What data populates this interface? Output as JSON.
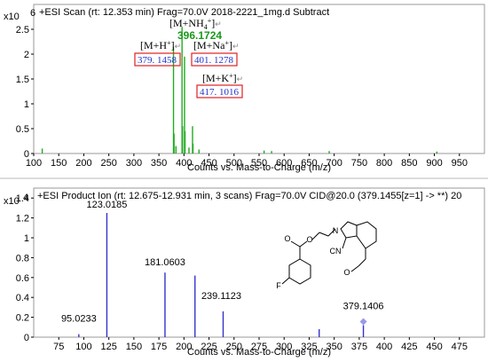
{
  "chart_data": [
    {
      "type": "bar",
      "title": "+ESI Scan (rt: 12.353 min) Frag=70.0V 2018-2221_1mg.d  Subtract",
      "y_multiplier": "x10",
      "y_exponent": "6",
      "xlabel": "Counts vs. Mass-to-Charge (m/z)",
      "xlim": [
        100,
        1000
      ],
      "ylim": [
        0,
        3.0
      ],
      "x_ticks": [
        "100",
        "150",
        "200",
        "250",
        "300",
        "350",
        "400",
        "450",
        "500",
        "550",
        "600",
        "650",
        "700",
        "750",
        "800",
        "850",
        "900",
        "950"
      ],
      "y_ticks": [
        "0",
        "0.5",
        "1",
        "1.5",
        "2",
        "2.5"
      ],
      "bar_color": "#22aa22",
      "peaks": [
        {
          "x": 117,
          "y": 0.1
        },
        {
          "x": 379.1,
          "y": 2.15
        },
        {
          "x": 380.2,
          "y": 0.4
        },
        {
          "x": 384,
          "y": 0.15
        },
        {
          "x": 396.17,
          "y": 2.55
        },
        {
          "x": 397.2,
          "y": 0.55
        },
        {
          "x": 401.13,
          "y": 1.95
        },
        {
          "x": 402.1,
          "y": 0.45
        },
        {
          "x": 410,
          "y": 0.12
        },
        {
          "x": 417.1,
          "y": 0.55
        },
        {
          "x": 418,
          "y": 0.2
        },
        {
          "x": 430,
          "y": 0.08
        },
        {
          "x": 560,
          "y": 0.06
        },
        {
          "x": 575,
          "y": 0.05
        },
        {
          "x": 690,
          "y": 0.05
        },
        {
          "x": 905,
          "y": 0.04
        }
      ],
      "annotations": [
        {
          "label_parts": [
            "[M+NH",
            "4",
            "+",
            "]"
          ],
          "mass": "396.1724",
          "boxed": false,
          "mass_color": "#1a9a1a"
        },
        {
          "label_parts": [
            "[M+H",
            "",
            "+",
            "]"
          ],
          "mass": "379. 1458",
          "boxed": true,
          "mass_color": "#2233cc"
        },
        {
          "label_parts": [
            "[M+Na",
            "",
            "+",
            "]"
          ],
          "mass": "401. 1278",
          "boxed": true,
          "mass_color": "#2233cc"
        },
        {
          "label_parts": [
            "[M+K",
            "",
            "+",
            "]"
          ],
          "mass": "417. 1016",
          "boxed": true,
          "mass_color": "#2233cc"
        }
      ],
      "return_mark": "↵"
    },
    {
      "type": "bar",
      "title": "+ESI Product Ion (rt: 12.675-12.931 min, 3 scans) Frag=70.0V CID@20.0 (379.1455[z=1] -> **) 20",
      "y_multiplier": "x10",
      "y_exponent": "4",
      "xlabel": "Counts vs. Mass-to-Charge (m/z)",
      "xlim": [
        50,
        500
      ],
      "ylim": [
        0,
        1.5
      ],
      "x_ticks": [
        "75",
        "100",
        "125",
        "150",
        "175",
        "200",
        "225",
        "250",
        "275",
        "300",
        "325",
        "350",
        "375",
        "400",
        "425",
        "450",
        "475"
      ],
      "y_ticks": [
        "0",
        "0.2",
        "0.4",
        "0.6",
        "0.8",
        "1",
        "1.2",
        "1.4"
      ],
      "bar_color": "#3333cc",
      "peaks": [
        {
          "x": 95.02,
          "y": 0.03
        },
        {
          "x": 123.02,
          "y": 1.25
        },
        {
          "x": 181.06,
          "y": 0.65
        },
        {
          "x": 211,
          "y": 0.62
        },
        {
          "x": 239.11,
          "y": 0.26
        },
        {
          "x": 335,
          "y": 0.08
        },
        {
          "x": 379.14,
          "y": 0.12
        }
      ],
      "labels": [
        "95.0233",
        "123.0185",
        "181.0603",
        "239.1123",
        "379.1406"
      ],
      "label_color": "#2233cc",
      "precursor_marker_color": "#9999ee"
    }
  ],
  "structure": {
    "labels": [
      "N",
      "O",
      "O",
      "F",
      "CN",
      "O"
    ]
  }
}
